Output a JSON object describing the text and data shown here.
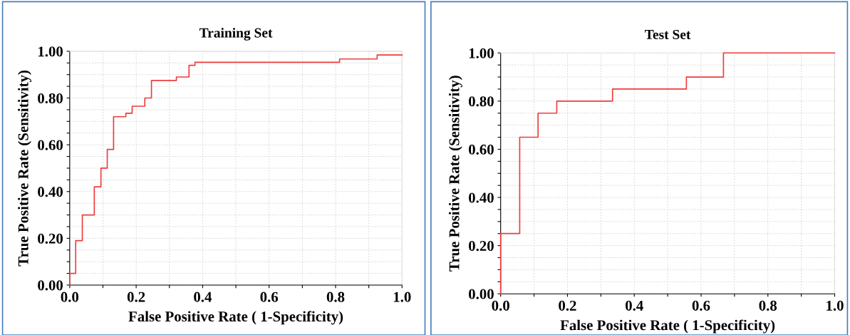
{
  "chart_data": [
    {
      "type": "step",
      "title": "Training Set",
      "xlabel": "False Positive Rate ( 1-Specificity)",
      "ylabel": "True Positive Rate (Sensitivity)",
      "x": [
        0,
        0,
        0.018,
        0.038,
        0.074,
        0.094,
        0.113,
        0.132,
        0.169,
        0.188,
        0.226,
        0.246,
        0.321,
        0.359,
        0.377,
        0.812,
        0.925,
        1.0
      ],
      "series": [
        {
          "color": "#f03c3c",
          "values": [
            0,
            0.05,
            0.19,
            0.3,
            0.42,
            0.5,
            0.58,
            0.72,
            0.735,
            0.765,
            0.8,
            0.875,
            0.89,
            0.94,
            0.953,
            0.967,
            0.984,
            0.984
          ]
        }
      ],
      "xlim": [
        0,
        1
      ],
      "ylim": [
        0,
        1
      ],
      "xticks": [
        {
          "value": 0.0,
          "label": "0.0"
        },
        {
          "value": 0.1,
          "label": null
        },
        {
          "value": 0.2,
          "label": "0.2"
        },
        {
          "value": 0.3,
          "label": null
        },
        {
          "value": 0.4,
          "label": "0.4"
        },
        {
          "value": 0.5,
          "label": null
        },
        {
          "value": 0.6,
          "label": "0.6"
        },
        {
          "value": 0.7,
          "label": null
        },
        {
          "value": 0.8,
          "label": "0.8"
        },
        {
          "value": 0.9,
          "label": null
        },
        {
          "value": 1.0,
          "label": "1.0"
        }
      ],
      "yticks": [
        {
          "value": 0.0,
          "label": "0.00"
        },
        {
          "value": 0.05,
          "label": null
        },
        {
          "value": 0.1,
          "label": null
        },
        {
          "value": 0.15,
          "label": null
        },
        {
          "value": 0.2,
          "label": "0.20"
        },
        {
          "value": 0.25,
          "label": null
        },
        {
          "value": 0.3,
          "label": null
        },
        {
          "value": 0.35,
          "label": null
        },
        {
          "value": 0.4,
          "label": "0.40"
        },
        {
          "value": 0.45,
          "label": null
        },
        {
          "value": 0.5,
          "label": null
        },
        {
          "value": 0.55,
          "label": null
        },
        {
          "value": 0.6,
          "label": "0.60"
        },
        {
          "value": 0.65,
          "label": null
        },
        {
          "value": 0.7,
          "label": null
        },
        {
          "value": 0.75,
          "label": null
        },
        {
          "value": 0.8,
          "label": "0.80"
        },
        {
          "value": 0.85,
          "label": null
        },
        {
          "value": 0.9,
          "label": null
        },
        {
          "value": 0.95,
          "label": null
        },
        {
          "value": 1.0,
          "label": "1.00"
        }
      ],
      "grid": true,
      "line_style": "solid",
      "marker": "none"
    },
    {
      "type": "step",
      "title": "Test Set",
      "xlabel": "False Positive Rate ( 1-Specificity)",
      "ylabel": "True Positive Rate (Sensitivity)",
      "x": [
        0,
        0,
        0.057,
        0.112,
        0.168,
        0.335,
        0.556,
        0.667,
        1.0
      ],
      "series": [
        {
          "color": "#f03c3c",
          "values": [
            0,
            0.25,
            0.65,
            0.75,
            0.8,
            0.85,
            0.9,
            1.0,
            1.0
          ]
        }
      ],
      "xlim": [
        0,
        1
      ],
      "ylim": [
        0,
        1
      ],
      "xticks": [
        {
          "value": 0.0,
          "label": "0.0"
        },
        {
          "value": 0.1,
          "label": null
        },
        {
          "value": 0.2,
          "label": "0.2"
        },
        {
          "value": 0.3,
          "label": null
        },
        {
          "value": 0.4,
          "label": "0.4"
        },
        {
          "value": 0.5,
          "label": null
        },
        {
          "value": 0.6,
          "label": "0.6"
        },
        {
          "value": 0.7,
          "label": null
        },
        {
          "value": 0.8,
          "label": "0.8"
        },
        {
          "value": 0.9,
          "label": null
        },
        {
          "value": 1.0,
          "label": "1.0"
        }
      ],
      "yticks": [
        {
          "value": 0.0,
          "label": "0.00"
        },
        {
          "value": 0.05,
          "label": null
        },
        {
          "value": 0.1,
          "label": null
        },
        {
          "value": 0.15,
          "label": null
        },
        {
          "value": 0.2,
          "label": "0.20"
        },
        {
          "value": 0.25,
          "label": null
        },
        {
          "value": 0.3,
          "label": null
        },
        {
          "value": 0.35,
          "label": null
        },
        {
          "value": 0.4,
          "label": "0.40"
        },
        {
          "value": 0.45,
          "label": null
        },
        {
          "value": 0.5,
          "label": null
        },
        {
          "value": 0.55,
          "label": null
        },
        {
          "value": 0.6,
          "label": "0.60"
        },
        {
          "value": 0.65,
          "label": null
        },
        {
          "value": 0.7,
          "label": null
        },
        {
          "value": 0.75,
          "label": null
        },
        {
          "value": 0.8,
          "label": "0.80"
        },
        {
          "value": 0.85,
          "label": null
        },
        {
          "value": 0.9,
          "label": null
        },
        {
          "value": 0.95,
          "label": null
        },
        {
          "value": 1.0,
          "label": "1.00"
        }
      ],
      "grid": true,
      "line_style": "solid",
      "marker": "none"
    }
  ]
}
